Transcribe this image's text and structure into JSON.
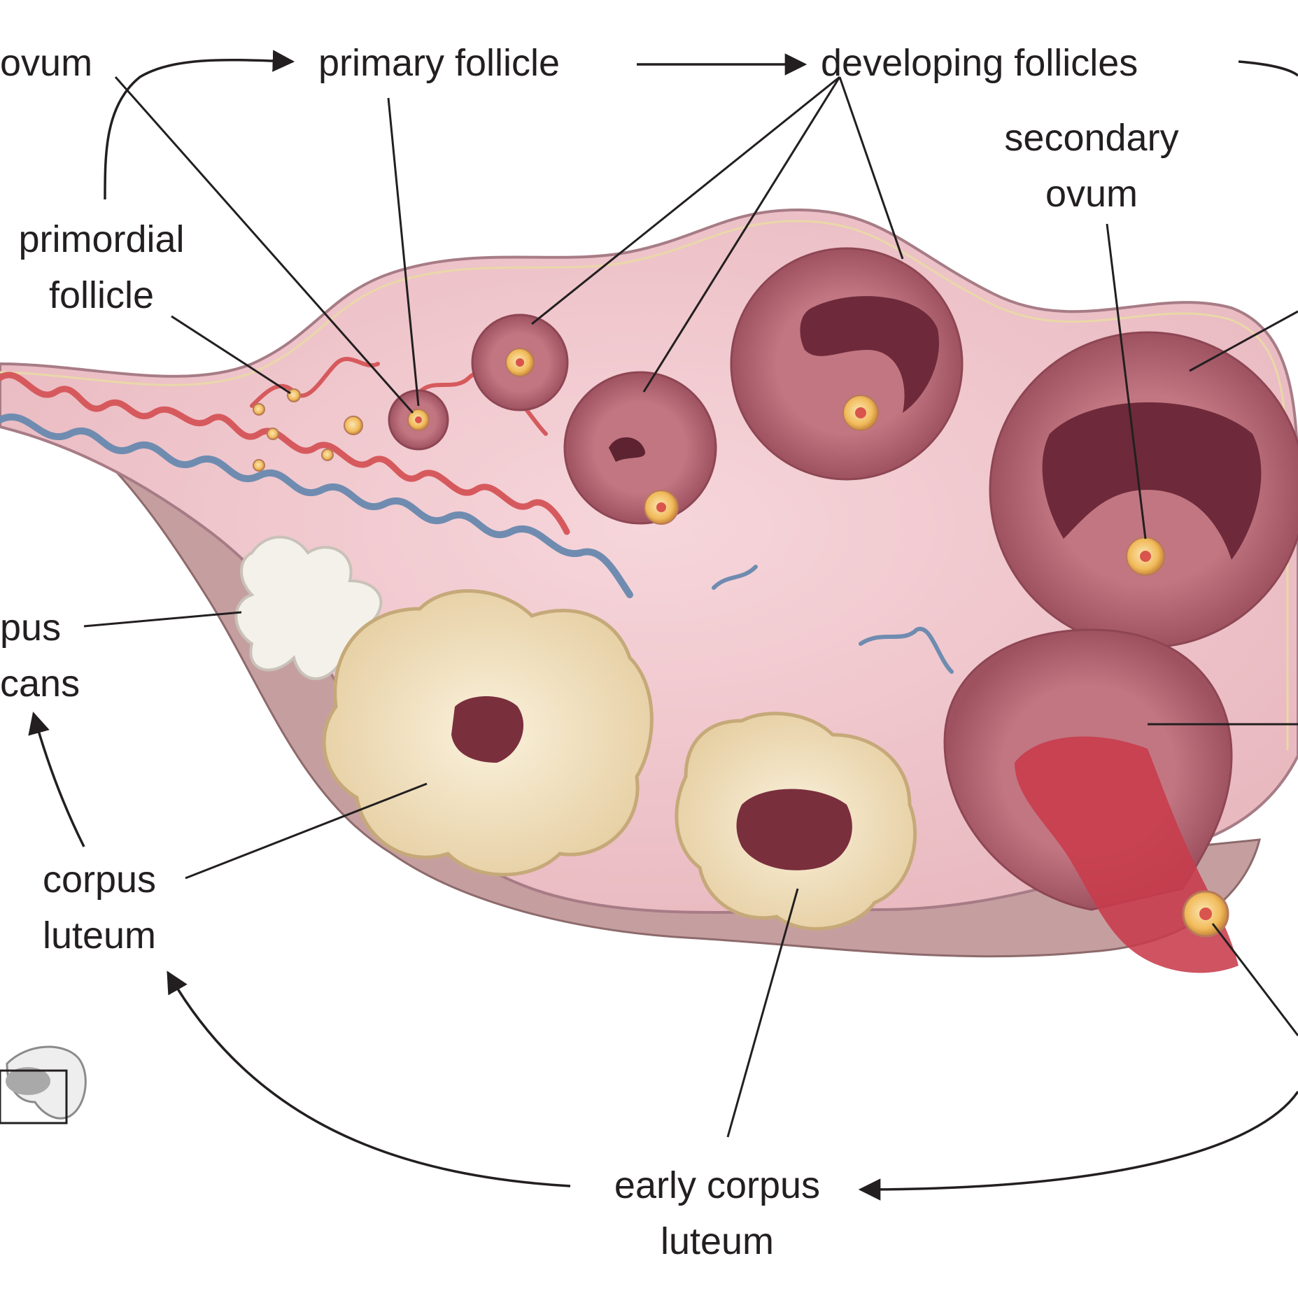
{
  "labels": {
    "ovum": "ovum",
    "primary_follicle": "primary follicle",
    "developing_follicles": "developing follicles",
    "secondary_ovum_1": "secondary",
    "secondary_ovum_2": "ovum",
    "primordial_follicle_1": "primordial",
    "primordial_follicle_2": "follicle",
    "corpus_albicans_1": "pus",
    "corpus_albicans_2": "cans",
    "corpus_luteum_1": "corpus",
    "corpus_luteum_2": "luteum",
    "early_corpus_luteum_1": "early corpus",
    "early_corpus_luteum_2": "luteum"
  },
  "colors": {
    "stroma": "#f2c9cf",
    "cortex": "#e7b3ba",
    "follicle": "#b5646f",
    "antrum": "#7a2f3d",
    "luteum": "#f1e2c2",
    "artery": "#d9575a",
    "vein": "#6b87aa",
    "ovum": "#f4c46a",
    "line": "#231f20"
  }
}
